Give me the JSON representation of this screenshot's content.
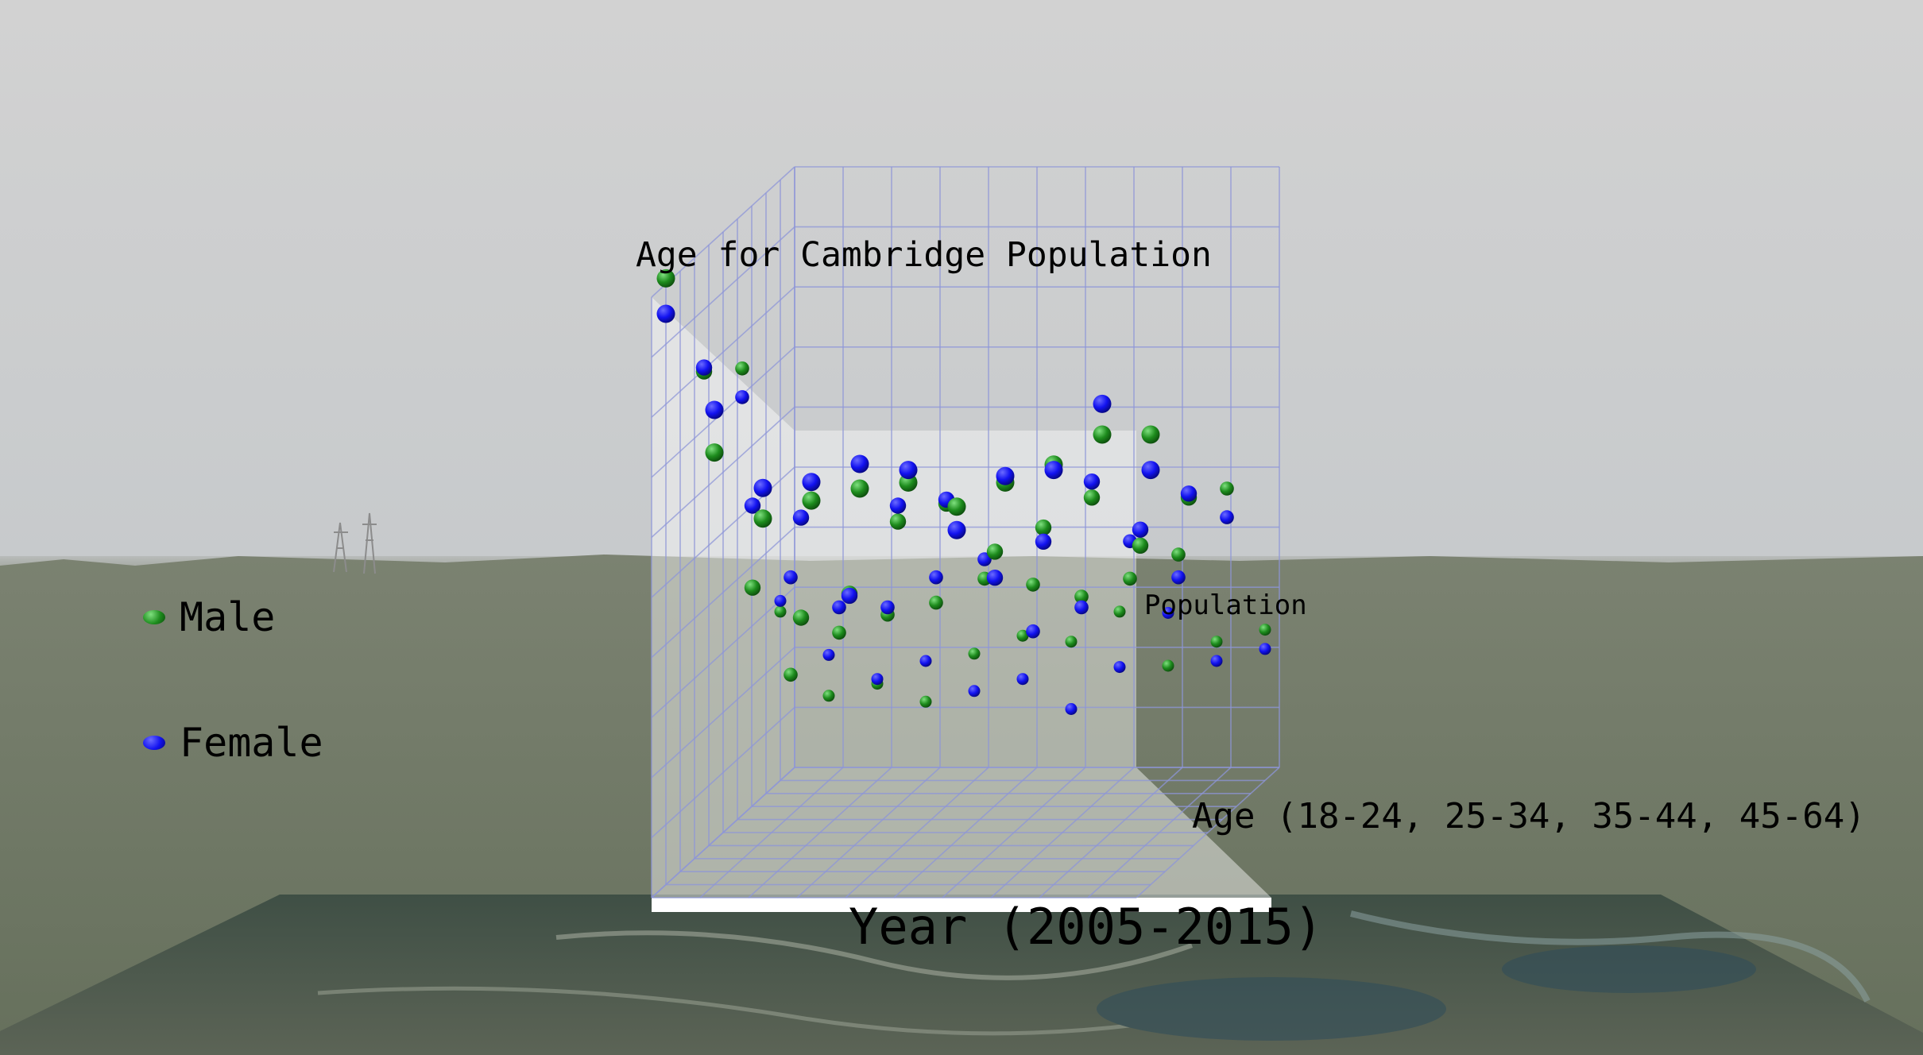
{
  "chart_data": {
    "type": "scatter",
    "title": "Age for Cambridge Population",
    "xlabel": "Year (2005-2015)",
    "ylabel": "Population",
    "zlabel": "Age (18-24, 25-34, 35-44, 45-64)",
    "grid": true,
    "legend_placement": "left",
    "x_range": [
      2005,
      2015
    ],
    "z_categories": [
      "18-24",
      "25-34",
      "35-44",
      "45-64"
    ],
    "y_range": [
      0,
      100
    ],
    "series": [
      {
        "name": "Male",
        "color": "#1e8a1e",
        "points": [
          [
            2005,
            "18-24",
            100
          ],
          [
            2005,
            "25-34",
            79
          ],
          [
            2005,
            "35-44",
            74
          ],
          [
            2005,
            "45-64",
            28
          ],
          [
            2006,
            "18-24",
            71
          ],
          [
            2006,
            "25-34",
            43
          ],
          [
            2006,
            "35-44",
            23
          ],
          [
            2006,
            "45-64",
            14
          ],
          [
            2007,
            "18-24",
            60
          ],
          [
            2007,
            "25-34",
            38
          ],
          [
            2007,
            "35-44",
            30
          ],
          [
            2007,
            "45-64",
            16
          ],
          [
            2008,
            "18-24",
            63
          ],
          [
            2008,
            "25-34",
            42
          ],
          [
            2008,
            "35-44",
            33
          ],
          [
            2008,
            "45-64",
            13
          ],
          [
            2009,
            "18-24",
            65
          ],
          [
            2009,
            "25-34",
            54
          ],
          [
            2009,
            "35-44",
            35
          ],
          [
            2009,
            "45-64",
            21
          ],
          [
            2010,
            "18-24",
            66
          ],
          [
            2010,
            "25-34",
            57
          ],
          [
            2010,
            "35-44",
            39
          ],
          [
            2010,
            "45-64",
            24
          ],
          [
            2011,
            "18-24",
            62
          ],
          [
            2011,
            "25-34",
            49
          ],
          [
            2011,
            "35-44",
            38
          ],
          [
            2011,
            "45-64",
            23
          ],
          [
            2012,
            "18-24",
            66
          ],
          [
            2012,
            "25-34",
            53
          ],
          [
            2012,
            "35-44",
            36
          ],
          [
            2012,
            "45-64",
            28
          ],
          [
            2013,
            "18-24",
            69
          ],
          [
            2013,
            "25-34",
            58
          ],
          [
            2013,
            "35-44",
            39
          ],
          [
            2013,
            "45-64",
            19
          ],
          [
            2014,
            "18-24",
            74
          ],
          [
            2014,
            "25-34",
            50
          ],
          [
            2014,
            "35-44",
            43
          ],
          [
            2014,
            "45-64",
            23
          ],
          [
            2015,
            "18-24",
            74
          ],
          [
            2015,
            "25-34",
            58
          ],
          [
            2015,
            "35-44",
            54
          ],
          [
            2015,
            "45-64",
            25
          ]
        ]
      },
      {
        "name": "Female",
        "color": "#1010ee",
        "points": [
          [
            2005,
            "18-24",
            96
          ],
          [
            2005,
            "25-34",
            81
          ],
          [
            2005,
            "35-44",
            70
          ],
          [
            2005,
            "45-64",
            30
          ],
          [
            2006,
            "18-24",
            80
          ],
          [
            2006,
            "25-34",
            58
          ],
          [
            2006,
            "35-44",
            40
          ],
          [
            2006,
            "45-64",
            21
          ],
          [
            2007,
            "18-24",
            67
          ],
          [
            2007,
            "25-34",
            56
          ],
          [
            2007,
            "35-44",
            35
          ],
          [
            2007,
            "45-64",
            17
          ],
          [
            2008,
            "18-24",
            68
          ],
          [
            2008,
            "25-34",
            43
          ],
          [
            2008,
            "35-44",
            35
          ],
          [
            2008,
            "45-64",
            20
          ],
          [
            2009,
            "18-24",
            71
          ],
          [
            2009,
            "25-34",
            58
          ],
          [
            2009,
            "35-44",
            40
          ],
          [
            2009,
            "45-64",
            15
          ],
          [
            2010,
            "18-24",
            70
          ],
          [
            2010,
            "25-34",
            59
          ],
          [
            2010,
            "35-44",
            43
          ],
          [
            2010,
            "45-64",
            17
          ],
          [
            2011,
            "18-24",
            60
          ],
          [
            2011,
            "25-34",
            46
          ],
          [
            2011,
            "35-44",
            31
          ],
          [
            2011,
            "45-64",
            12
          ],
          [
            2012,
            "18-24",
            69
          ],
          [
            2012,
            "25-34",
            52
          ],
          [
            2012,
            "35-44",
            35
          ],
          [
            2012,
            "45-64",
            19
          ],
          [
            2013,
            "18-24",
            70
          ],
          [
            2013,
            "25-34",
            62
          ],
          [
            2013,
            "35-44",
            46
          ],
          [
            2013,
            "45-64",
            28
          ],
          [
            2014,
            "18-24",
            81
          ],
          [
            2014,
            "25-34",
            54
          ],
          [
            2014,
            "35-44",
            40
          ],
          [
            2014,
            "45-64",
            20
          ],
          [
            2015,
            "18-24",
            70
          ],
          [
            2015,
            "25-34",
            60
          ],
          [
            2015,
            "35-44",
            50
          ],
          [
            2015,
            "45-64",
            22
          ]
        ]
      }
    ]
  }
}
